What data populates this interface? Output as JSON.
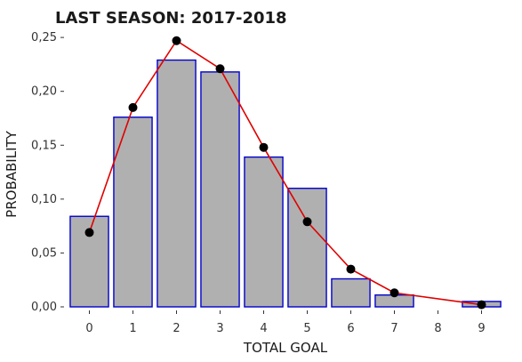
{
  "chart_data": {
    "type": "bar",
    "title": "LAST SEASON: 2017-2018",
    "xlabel": "TOTAL GOAL",
    "ylabel": "PROBABILITY",
    "categories": [
      "0",
      "1",
      "2",
      "3",
      "4",
      "5",
      "6",
      "7",
      "8",
      "9"
    ],
    "series": [
      {
        "type": "bar",
        "values": [
          0.084,
          0.176,
          0.229,
          0.218,
          0.139,
          0.11,
          0.026,
          0.011,
          0.0,
          0.005
        ]
      },
      {
        "type": "line",
        "values": [
          0.069,
          0.185,
          0.247,
          0.221,
          0.148,
          0.079,
          0.035,
          0.013,
          null,
          0.002
        ]
      }
    ],
    "ylim": [
      0,
      0.26
    ],
    "yticks": [
      0.0,
      0.05,
      0.1,
      0.15,
      0.2,
      0.25
    ],
    "ytick_labels": [
      "0,00",
      "0,05",
      "0,10",
      "0,15",
      "0,20",
      "0,25"
    ],
    "grid": false,
    "legend": "none",
    "colors": {
      "bar_fill": "#b0b0b0",
      "bar_edge": "#0000cc",
      "line": "#e00000",
      "marker": "#000000"
    }
  }
}
